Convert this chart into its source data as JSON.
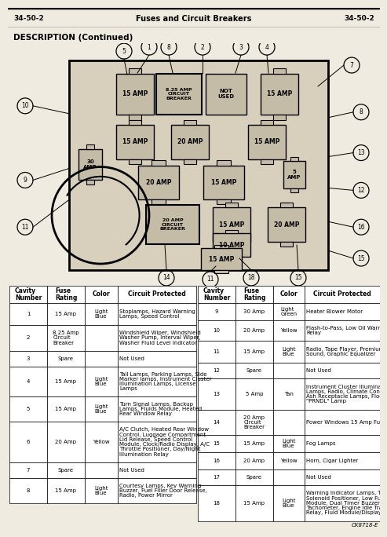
{
  "title_left": "34-50-2",
  "title_center": "Fuses and Circuit Breakers",
  "title_right": "34-50-2",
  "section_title": "DESCRIPTION (Continued)",
  "bg_color": "#f0ebe0",
  "diagram_note": "CK8718-E",
  "fuses_left": [
    {
      "num": "1",
      "rating": "15 Amp",
      "color": "Light\nBlue",
      "circuit": "Stoplamps, Hazard Warning\nLamps, Speed Control"
    },
    {
      "num": "2",
      "rating": "8.25 Amp\nCircuit\nBreaker",
      "color": "",
      "circuit": "Windshield Wiper, Windshield\nWasher Pump, Interval Wiper,\nWasher Fluid Level Indicator"
    },
    {
      "num": "3",
      "rating": "Spare",
      "color": "",
      "circuit": "Not Used"
    },
    {
      "num": "4",
      "rating": "15 Amp",
      "color": "Light\nBlue",
      "circuit": "Tail Lamps, Parking Lamps, Side\nMarker lamps, Instrument Cluster\nIllumination Lamps, License\nLamps"
    },
    {
      "num": "5",
      "rating": "15 Amp",
      "color": "Light\nBlue",
      "circuit": "Turn Signal Lamps, Backup\nLamps, Fluids Module, Heated\nRear Window Relay"
    },
    {
      "num": "6",
      "rating": "20 Amp",
      "color": "Yellow",
      "circuit": "A/C Clutch, Heated Rear Window\nControl, Luggage Compartment\nLid Release, Speed Control\nModule, Clock/Radio Display, A/C\nThrottle Positioner, Day/Night\nIllumination Relay"
    },
    {
      "num": "7",
      "rating": "Spare",
      "color": "",
      "circuit": "Not Used"
    },
    {
      "num": "8",
      "rating": "15 Amp",
      "color": "Light\nBlue",
      "circuit": "Courtesy Lamps, Key Warning\nBuzzer, Fuel Filler Door Release,\nRadio, Power Mirror"
    }
  ],
  "fuses_right": [
    {
      "num": "9",
      "rating": "30 Amp",
      "color": "Light\nGreen",
      "circuit": "Heater Blower Motor"
    },
    {
      "num": "10",
      "rating": "20 Amp",
      "color": "Yellow",
      "circuit": "Flash-to-Pass, Low Oil Warning\nRelay"
    },
    {
      "num": "11",
      "rating": "15 Amp",
      "color": "Light\nBlue",
      "circuit": "Radio, Tape Player, Premium\nSound, Graphic Equalizer"
    },
    {
      "num": "12",
      "rating": "Spare",
      "color": "",
      "circuit": "Not Used"
    },
    {
      "num": "13",
      "rating": "5 Amp",
      "color": "Tan",
      "circuit": "Instrument Cluster Illumination\nLamps, Radio, Climate Control,\nAsh Receptacle Lamps, Floor\n\"PRNDL\" Lamp"
    },
    {
      "num": "14",
      "rating": "20 Amp\nCircuit\nBreaker",
      "color": "",
      "circuit": "Power Windows 15 Amp Fuse"
    },
    {
      "num": "15",
      "rating": "15 Amp",
      "color": "Light\nBlue",
      "circuit": "Fog Lamps"
    },
    {
      "num": "16",
      "rating": "20 Amp",
      "color": "Yellow",
      "circuit": "Horn, Cigar Lighter"
    },
    {
      "num": "17",
      "rating": "Spare",
      "color": "",
      "circuit": "Not Used"
    },
    {
      "num": "18",
      "rating": "15 Amp",
      "color": "Light\nBlue",
      "circuit": "Warning Indicator Lamps, Throttle\nSolenoid Positioner, Low Fuel\nModule, Dual Timer Buzzer,\nTachometer, Engine Idle Track\nRelay, Fluid Module/Display"
    }
  ]
}
